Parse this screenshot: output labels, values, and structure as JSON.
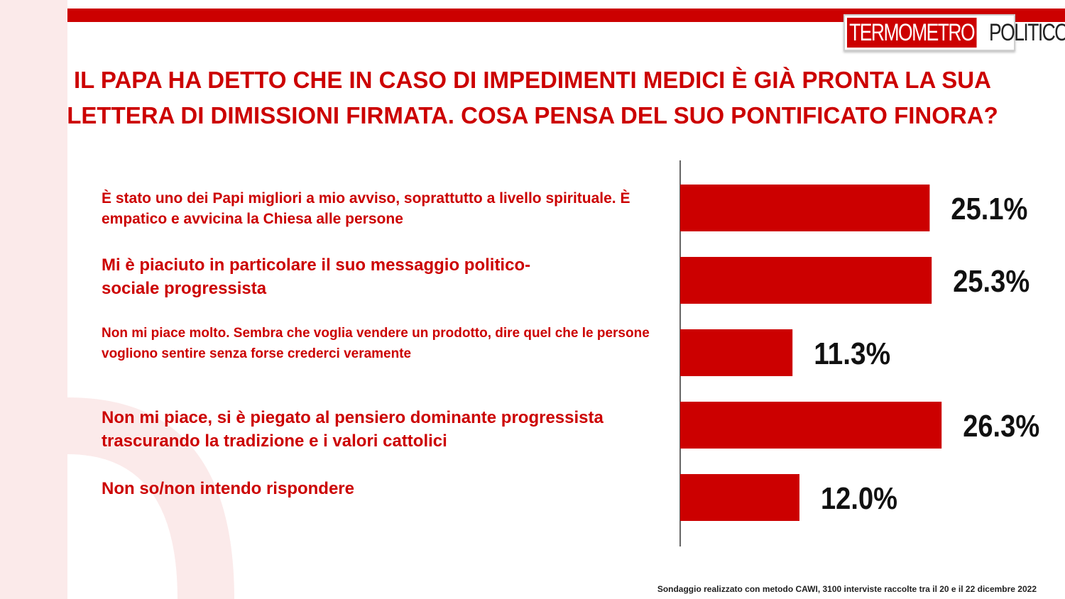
{
  "logo": {
    "part1": "TERMOMETRO",
    "part2": "POLITICO"
  },
  "title": "IL PAPA HA DETTO CHE IN CASO DI IMPEDIMENTI MEDICI È GIÀ PRONTA LA SUA LETTERA DI DIMISSIONI FIRMATA. COSA PENSA DEL SUO PONTIFICATO FINORA?",
  "colors": {
    "accent": "#cc0000",
    "text_dark": "#111111"
  },
  "chart_data": {
    "type": "bar",
    "orientation": "horizontal",
    "categories": [
      "È stato uno dei Papi migliori a mio avviso, soprattutto a livello spirituale. È empatico e avvicina la Chiesa alle persone",
      "Mi è piaciuto in particolare il suo messaggio politico-sociale progressista",
      "Non mi piace molto. Sembra che voglia vendere un prodotto, dire quel che le persone vogliono sentire senza forse crederci veramente",
      "Non mi piace, si è piegato al pensiero dominante progressista trascurando la tradizione e i valori cattolici",
      "Non so/non intendo rispondere"
    ],
    "values": [
      25.1,
      25.3,
      11.3,
      26.3,
      12.0
    ],
    "data_labels": [
      "25.1%",
      "25.3%",
      "11.3%",
      "26.3%",
      "12.0%"
    ],
    "unit": "%",
    "bar_color": "#cc0000",
    "grid": false,
    "legend": "none"
  },
  "footnote": "Sondaggio realizzato con metodo CAWI, 3100 interviste raccolte tra il 20 e il 22 dicembre 2022"
}
